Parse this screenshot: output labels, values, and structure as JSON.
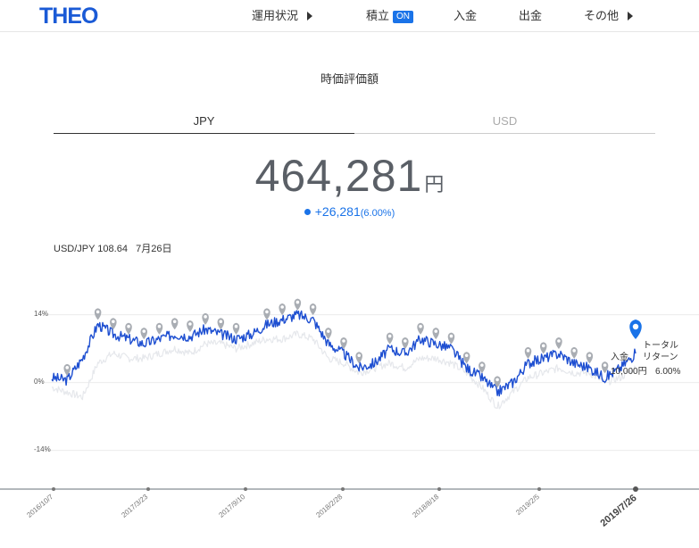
{
  "header": {
    "logo": "THEO",
    "nav": {
      "operation_status": "運用状況",
      "accumulate": "積立",
      "accumulate_badge": "ON",
      "deposit": "入金",
      "withdraw": "出金",
      "other": "その他"
    }
  },
  "page": {
    "title": "時価評価額",
    "tabs": {
      "jpy": "JPY",
      "usd": "USD"
    },
    "valuation": {
      "amount": "464,281",
      "unit": "円"
    },
    "gain": {
      "value": "+26,281",
      "percent": "(6.00%)"
    },
    "fx": {
      "label": "USD/JPY 108.64",
      "date": "7月26日"
    }
  },
  "colors": {
    "brand": "#1a5ad6",
    "accent": "#1a73e8",
    "theo_line": "#1e4fd1",
    "benchmark_line": "#e6e8ec",
    "marker": "#a9adb3"
  },
  "chart_data": {
    "type": "line",
    "y_ticks": [
      "14%",
      "0%",
      "-14%"
    ],
    "ylim": [
      -22,
      20
    ],
    "x_labels": [
      "2016/10/7",
      "2017/3/23",
      "2017/9/10",
      "2018/2/28",
      "2018/8/18",
      "2019/2/5",
      "2019/7/26"
    ],
    "x_selected": "2019/7/26",
    "series": [
      {
        "values": [
          1,
          0.5,
          5,
          12,
          10,
          9,
          8,
          9,
          10,
          9.5,
          11,
          10,
          9,
          10,
          12,
          13,
          14,
          13,
          8,
          6,
          3,
          4,
          7,
          6,
          9,
          8,
          7,
          3,
          1,
          -2,
          0,
          4,
          5,
          6,
          4,
          3,
          1,
          3,
          6
        ]
      },
      {
        "values": [
          -1,
          -2,
          -3,
          4,
          6,
          5,
          5,
          6,
          7,
          6,
          8,
          8,
          7,
          8,
          9,
          9,
          10,
          9,
          5,
          4,
          2,
          3,
          4,
          3,
          5,
          5,
          4,
          2,
          -1,
          -5,
          -2,
          1,
          2,
          3,
          2,
          2,
          0,
          1,
          3
        ]
      }
    ],
    "legend": {
      "deposit_label": "入金",
      "deposit_value": "10,000円",
      "return_label": "トータル\nリターン",
      "return_value": "6.00%"
    }
  }
}
